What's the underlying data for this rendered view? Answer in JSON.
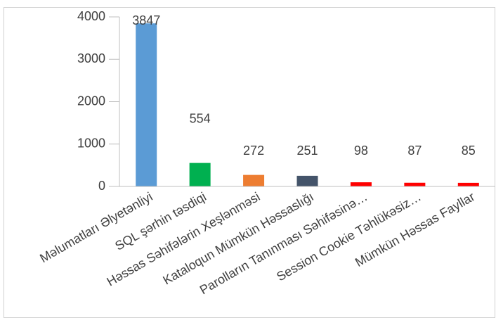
{
  "chart_data": {
    "type": "bar",
    "categories": [
      "Məlumatları Əlyetənliyi",
      "SQL şərhin təsdiqi",
      "Həssas Səhifələrin Xeşlənməsi",
      "Kataloqun Mümkün Həssaslığı",
      "Parolların Tanınması Səhifəsinə…",
      "Session Cookie Təhlükəsiz…",
      "Mümkün Həssas Fayllar"
    ],
    "values": [
      3847,
      554,
      272,
      251,
      98,
      87,
      85
    ],
    "colors": [
      "#5b9bd5",
      "#00b050",
      "#ed7d31",
      "#44546a",
      "#ff0000",
      "#ff0000",
      "#ff0000"
    ],
    "ylim": [
      0,
      4000
    ],
    "yticks": [
      0,
      1000,
      2000,
      3000,
      4000
    ],
    "grid": false
  }
}
